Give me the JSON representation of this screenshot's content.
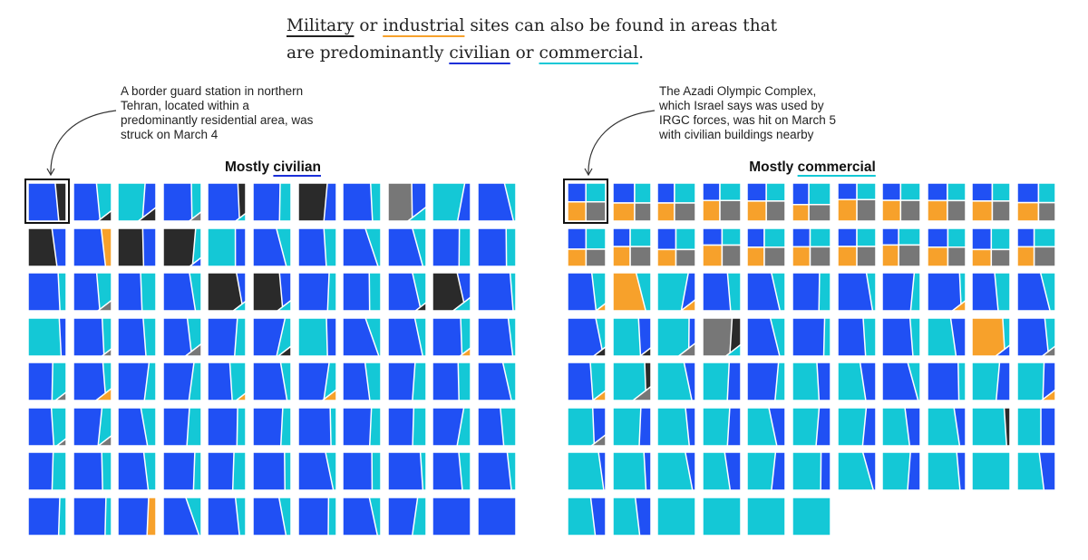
{
  "intro": {
    "w1": "Military",
    "t1": " or ",
    "w2": "industrial",
    "t2": " sites can also be found in areas that are predominantly ",
    "w3": "civilian",
    "t3": " or ",
    "w4": "commercial",
    "t4": "."
  },
  "colors": {
    "civilian": "#2050f4",
    "commercial": "#14c8d6",
    "military": "#2a2a2a",
    "industrial": "#f7a12b",
    "other": "#777777",
    "civilian_underline": "#1a2fd8"
  },
  "chart_data": [
    {
      "type": "tile-grid",
      "title_prefix": "Mostly ",
      "title_word": "civilian",
      "annotation": "A border guard station in northern Tehran, located within a predominantly residential area, was struck on March 4",
      "legend_codes": {
        "B": "civilian",
        "C": "commercial",
        "K": "military",
        "O": "industrial",
        "G": "other"
      },
      "tiles": [
        [
          "BK",
          "BCK",
          "CBK",
          "BCG",
          "BKC",
          "BC",
          "KB",
          "BC",
          "GBC",
          "CB",
          "BC"
        ],
        [
          "KB",
          "BO",
          "KB",
          "KCB",
          "CB",
          "BC",
          "BC",
          "BC",
          "BC",
          "BC",
          "BC"
        ],
        [
          "BC",
          "BCG",
          "BC",
          "BC",
          "KBC",
          "KBC",
          "BC",
          "BC",
          "BCK",
          "KBC",
          "BC"
        ],
        [
          "CB",
          "BCG",
          "BC",
          "BCG",
          "BC",
          "BCK",
          "CB",
          "BC",
          "BC",
          "BCO",
          "BC"
        ],
        [
          "BCG",
          "BCO",
          "BC",
          "BC",
          "BCO",
          "BC",
          "BCO",
          "BC",
          "BC",
          "BC",
          "BC"
        ],
        [
          "BCG",
          "BCG",
          "BC",
          "BC",
          "BC",
          "BC",
          "BC",
          "BC",
          "BC",
          "BC",
          "BC"
        ],
        [
          "BC",
          "BC",
          "BC",
          "BC",
          "BC",
          "BC",
          "BC",
          "BC",
          "BC",
          "BC",
          "BC"
        ],
        [
          "BC",
          "BC",
          "BO",
          "BC",
          "BC",
          "BC",
          "BC",
          "BC",
          "BC",
          "B",
          "B"
        ]
      ]
    },
    {
      "type": "tile-grid",
      "title_prefix": "Mostly ",
      "title_word": "commercial",
      "annotation": "The Azadi Olympic Complex, which Israel says was used by IRGC forces, was hit on March 5 with civilian buildings nearby",
      "legend_codes": {
        "B": "civilian",
        "C": "commercial",
        "K": "military",
        "O": "industrial",
        "G": "other"
      },
      "tiles": [
        [
          "Q",
          "Q",
          "Q",
          "Q",
          "Q",
          "Q",
          "Q",
          "Q",
          "Q",
          "Q",
          "Q"
        ],
        [
          "Q",
          "Q",
          "Q",
          "Q",
          "Q",
          "Q",
          "Q",
          "Q",
          "Q",
          "Q",
          "Q"
        ],
        [
          "BCO",
          "OC",
          "CBO",
          "BC",
          "BC",
          "BC",
          "BC",
          "BC",
          "BCO",
          "BC",
          "BC"
        ],
        [
          "BCK",
          "CBK",
          "CBG",
          "GKC",
          "BC",
          "BC",
          "BC",
          "BC",
          "CB",
          "OCB",
          "BCG"
        ],
        [
          "BCO",
          "CKG",
          "CB",
          "CB",
          "BC",
          "CB",
          "CB",
          "BC",
          "BC",
          "CB",
          "CBO"
        ],
        [
          "CBG",
          "CB",
          "CB",
          "CB",
          "CB",
          "CB",
          "CB",
          "CB",
          "CB",
          "CK",
          "CB"
        ],
        [
          "CB",
          "CB",
          "CB",
          "CB",
          "CB",
          "CB",
          "CB",
          "CB",
          "CB",
          "C",
          "CB"
        ],
        [
          "CB",
          "CB",
          "C",
          "C",
          "C",
          "C"
        ]
      ]
    }
  ]
}
